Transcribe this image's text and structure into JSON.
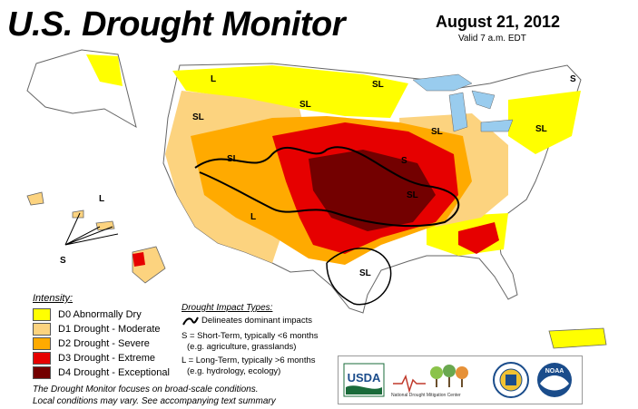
{
  "header": {
    "title": "U.S. Drought Monitor",
    "date": "August 21, 2012",
    "valid": "Valid 7 a.m. EDT"
  },
  "legend": {
    "title": "Intensity:",
    "items": [
      {
        "label": "D0 Abnormally Dry",
        "color": "#ffff00"
      },
      {
        "label": "D1 Drought - Moderate",
        "color": "#fcd37f"
      },
      {
        "label": "D2 Drought - Severe",
        "color": "#ffaa00"
      },
      {
        "label": "D3 Drought - Extreme",
        "color": "#e60000"
      },
      {
        "label": "D4 Drought - Exceptional",
        "color": "#730000"
      }
    ]
  },
  "impacts": {
    "title": "Drought Impact Types:",
    "lines": [
      "Delineates dominant impacts",
      "S = Short-Term, typically <6 months",
      "(e.g. agriculture, grasslands)",
      "L = Long-Term, typically >6 months",
      "(e.g. hydrology, ecology)"
    ]
  },
  "map_labels": {
    "sl": "SL",
    "s": "S",
    "l": "L"
  },
  "footnote": {
    "line1": "The Drought Monitor focuses on broad-scale conditions.",
    "line2": "Local conditions may vary. See accompanying text summary"
  },
  "logos": {
    "usda": "USDA",
    "ndmc_name": "National Drought Mitigation Center",
    "noaa": "NOAA"
  },
  "colors": {
    "water": "#99ccee",
    "border": "#666666"
  }
}
